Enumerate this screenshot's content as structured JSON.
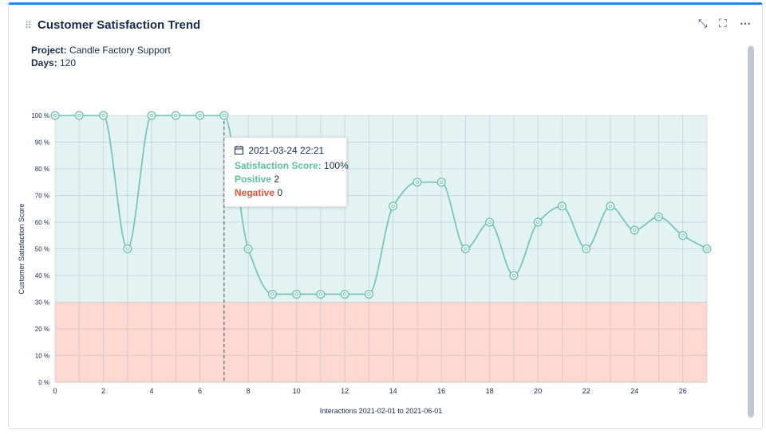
{
  "panel": {
    "title": "Customer Satisfaction Trend",
    "drag_glyph": "⠿",
    "controls": {
      "collapse": "⤡",
      "fullscreen": "⛶",
      "more": "⋯"
    },
    "project_label": "Project:",
    "project_value": "Candle Factory Support",
    "days_label": "Days:",
    "days_value": "120"
  },
  "tooltip": {
    "date": "2021-03-24 22:21",
    "score_label": "Satisfaction Score:",
    "score_value": "100%",
    "positive_label": "Positive",
    "positive_value": "2",
    "negative_label": "Negative",
    "negative_value": "0"
  },
  "colors": {
    "line": "#6cc3ad",
    "positive_fill": "#e3f3f2",
    "negative_fill": "#fdd9d2",
    "tooltip_positive": "#5bbfa0",
    "tooltip_negative": "#e8533c"
  },
  "chart_data": {
    "type": "area",
    "xlabel": "Interactions 2021-02-01 to 2021-06-01",
    "ylabel": "Customer Satisfaction Score",
    "x": [
      0,
      1,
      2,
      3,
      4,
      5,
      6,
      7,
      8,
      9,
      10,
      11,
      12,
      13,
      14,
      15,
      16,
      17,
      18,
      19,
      20,
      21,
      22,
      23,
      24,
      25,
      26,
      27
    ],
    "values": [
      100,
      100,
      100,
      50,
      100,
      100,
      100,
      100,
      50,
      33,
      33,
      33,
      33,
      33,
      66,
      75,
      75,
      50,
      60,
      40,
      60,
      66,
      50,
      66,
      57,
      62,
      55,
      50
    ],
    "xlim": [
      0,
      27
    ],
    "ylim": [
      0,
      100
    ],
    "x_ticks": [
      0,
      2,
      4,
      6,
      8,
      10,
      12,
      14,
      16,
      18,
      20,
      22,
      24,
      26
    ],
    "y_ticks": [
      0,
      10,
      20,
      30,
      40,
      50,
      60,
      70,
      80,
      90,
      100
    ],
    "y_tick_labels": [
      "0 %",
      "10 %",
      "20 %",
      "30 %",
      "40 %",
      "50 %",
      "60 %",
      "70 %",
      "80 %",
      "90 %",
      "100 %"
    ],
    "threshold": 30,
    "highlight_x": 7,
    "grid": true,
    "legend": "none"
  }
}
